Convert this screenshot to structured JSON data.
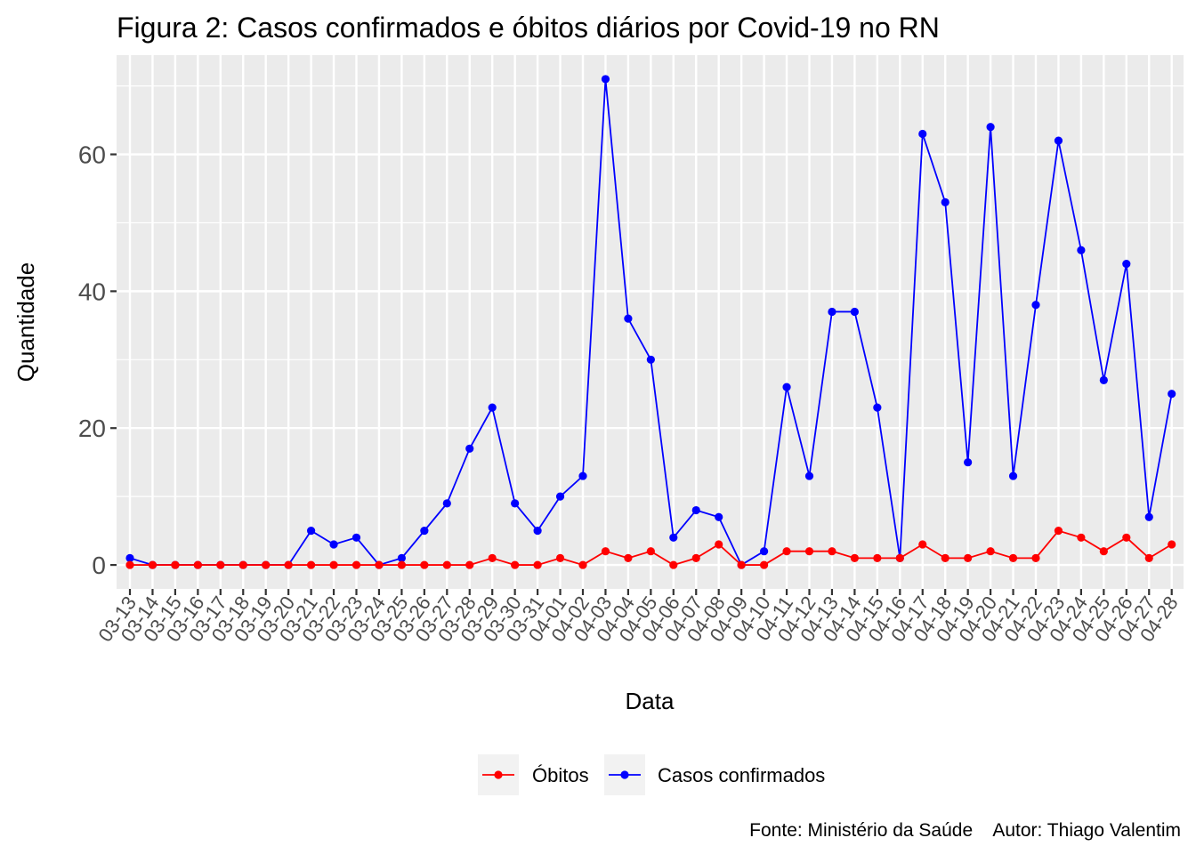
{
  "chart_data": {
    "type": "line",
    "title": "Figura 2: Casos confirmados e óbitos diários por Covid-19 no RN",
    "xlabel": "Data",
    "ylabel": "Quantidade",
    "categories": [
      "03-13",
      "03-14",
      "03-15",
      "03-16",
      "03-17",
      "03-18",
      "03-19",
      "03-20",
      "03-21",
      "03-22",
      "03-23",
      "03-24",
      "03-25",
      "03-26",
      "03-27",
      "03-28",
      "03-29",
      "03-30",
      "03-31",
      "04-01",
      "04-02",
      "04-03",
      "04-04",
      "04-05",
      "04-06",
      "04-07",
      "04-08",
      "04-09",
      "04-10",
      "04-11",
      "04-12",
      "04-13",
      "04-14",
      "04-15",
      "04-16",
      "04-17",
      "04-18",
      "04-19",
      "04-20",
      "04-21",
      "04-22",
      "04-23",
      "04-24",
      "04-25",
      "04-26",
      "04-27",
      "04-28"
    ],
    "ylim": [
      -3.5,
      74.5
    ],
    "y_ticks": [
      0,
      20,
      40,
      60
    ],
    "grid": true,
    "legend_position": "bottom",
    "series": [
      {
        "name": "Óbitos",
        "color": "#ff0000",
        "values": [
          0,
          0,
          0,
          0,
          0,
          0,
          0,
          0,
          0,
          0,
          0,
          0,
          0,
          0,
          0,
          0,
          1,
          0,
          0,
          1,
          0,
          2,
          1,
          2,
          0,
          1,
          3,
          0,
          0,
          2,
          2,
          2,
          1,
          1,
          1,
          3,
          1,
          1,
          2,
          1,
          1,
          5,
          4,
          2,
          4,
          1,
          3
        ]
      },
      {
        "name": "Casos confirmados",
        "color": "#0000ff",
        "values": [
          1,
          0,
          0,
          0,
          0,
          0,
          0,
          0,
          5,
          3,
          4,
          0,
          1,
          5,
          9,
          17,
          23,
          9,
          5,
          10,
          13,
          71,
          36,
          30,
          4,
          8,
          7,
          0,
          2,
          26,
          13,
          37,
          37,
          23,
          1,
          63,
          53,
          15,
          64,
          13,
          38,
          62,
          46,
          27,
          44,
          7,
          25
        ]
      }
    ],
    "caption": "Fonte: Ministério da Saúde    Autor: Thiago Valentim"
  }
}
